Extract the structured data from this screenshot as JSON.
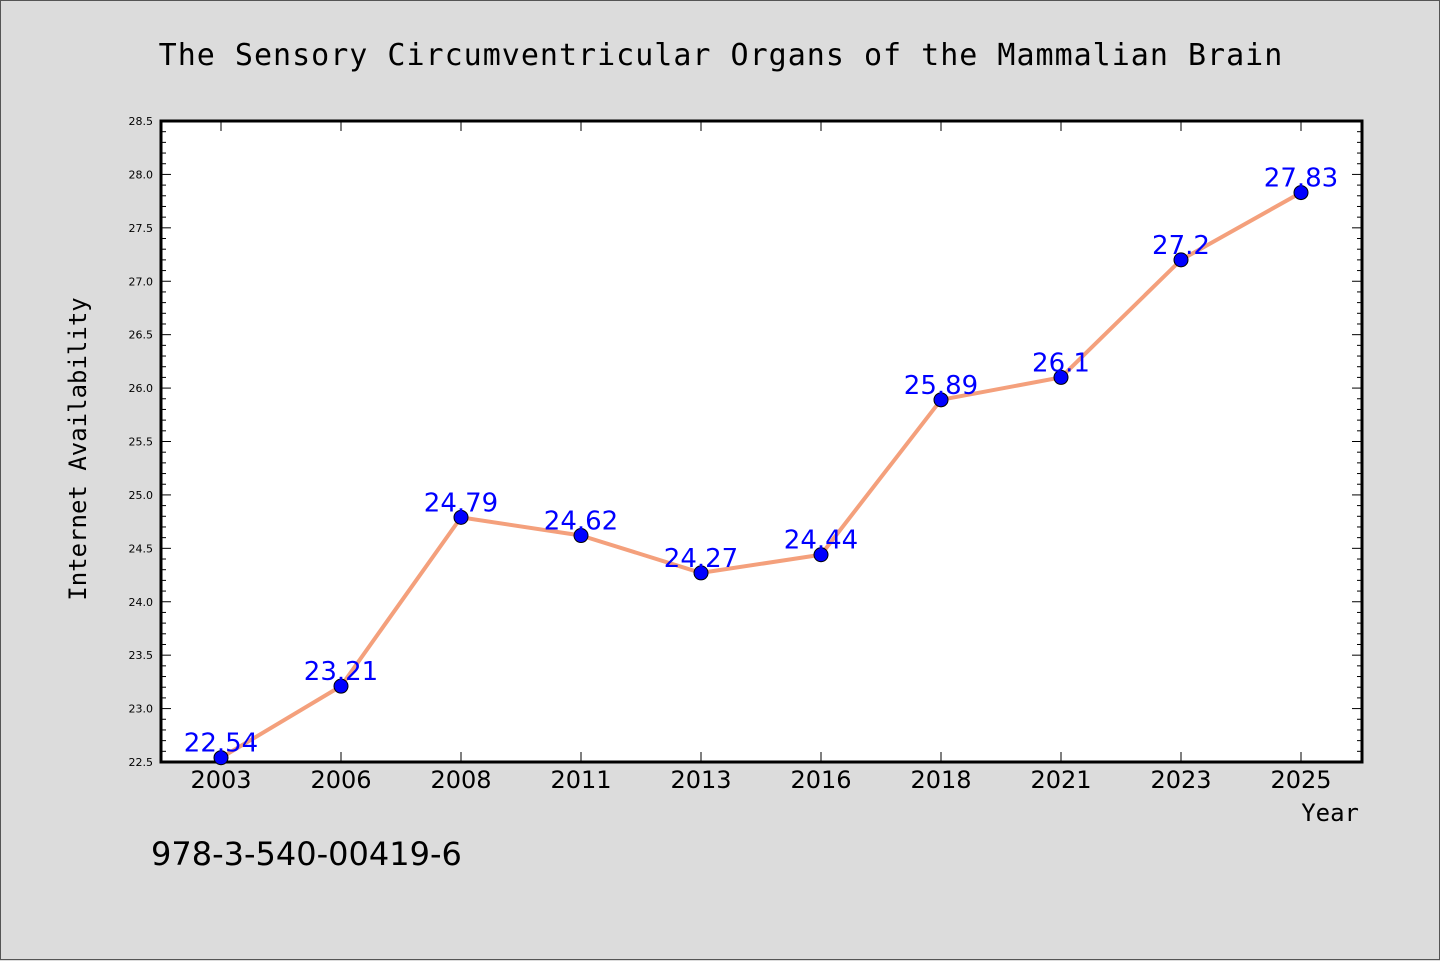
{
  "chart_data": {
    "type": "line",
    "title": "The Sensory Circumventricular Organs of the Mammalian Brain",
    "xlabel": "Year",
    "ylabel": "Internet Availability",
    "categories": [
      "2003",
      "2006",
      "2008",
      "2011",
      "2013",
      "2016",
      "2018",
      "2021",
      "2023",
      "2025"
    ],
    "series": [
      {
        "values": [
          22.54,
          23.21,
          24.79,
          24.62,
          24.27,
          24.44,
          25.89,
          26.1,
          27.2,
          27.83
        ],
        "data_labels": [
          "22.54",
          "23.21",
          "24.79",
          "24.62",
          "24.27",
          "24.44",
          "25.89",
          "26.1",
          "27.2",
          "27.83"
        ],
        "line_color": "#f4a07c",
        "marker_color": "#0000ff",
        "label_color": "#0000ff"
      }
    ],
    "ylim": [
      22.5,
      28.5
    ],
    "yticks": [
      "22.5",
      "23.0",
      "23.5",
      "24.0",
      "24.5",
      "25.0",
      "25.5",
      "26.0",
      "26.5",
      "27.0",
      "27.5",
      "28.0",
      "28.5"
    ],
    "grid": false,
    "legend": "none"
  },
  "footer": {
    "isbn": "978-3-540-00419-6"
  }
}
